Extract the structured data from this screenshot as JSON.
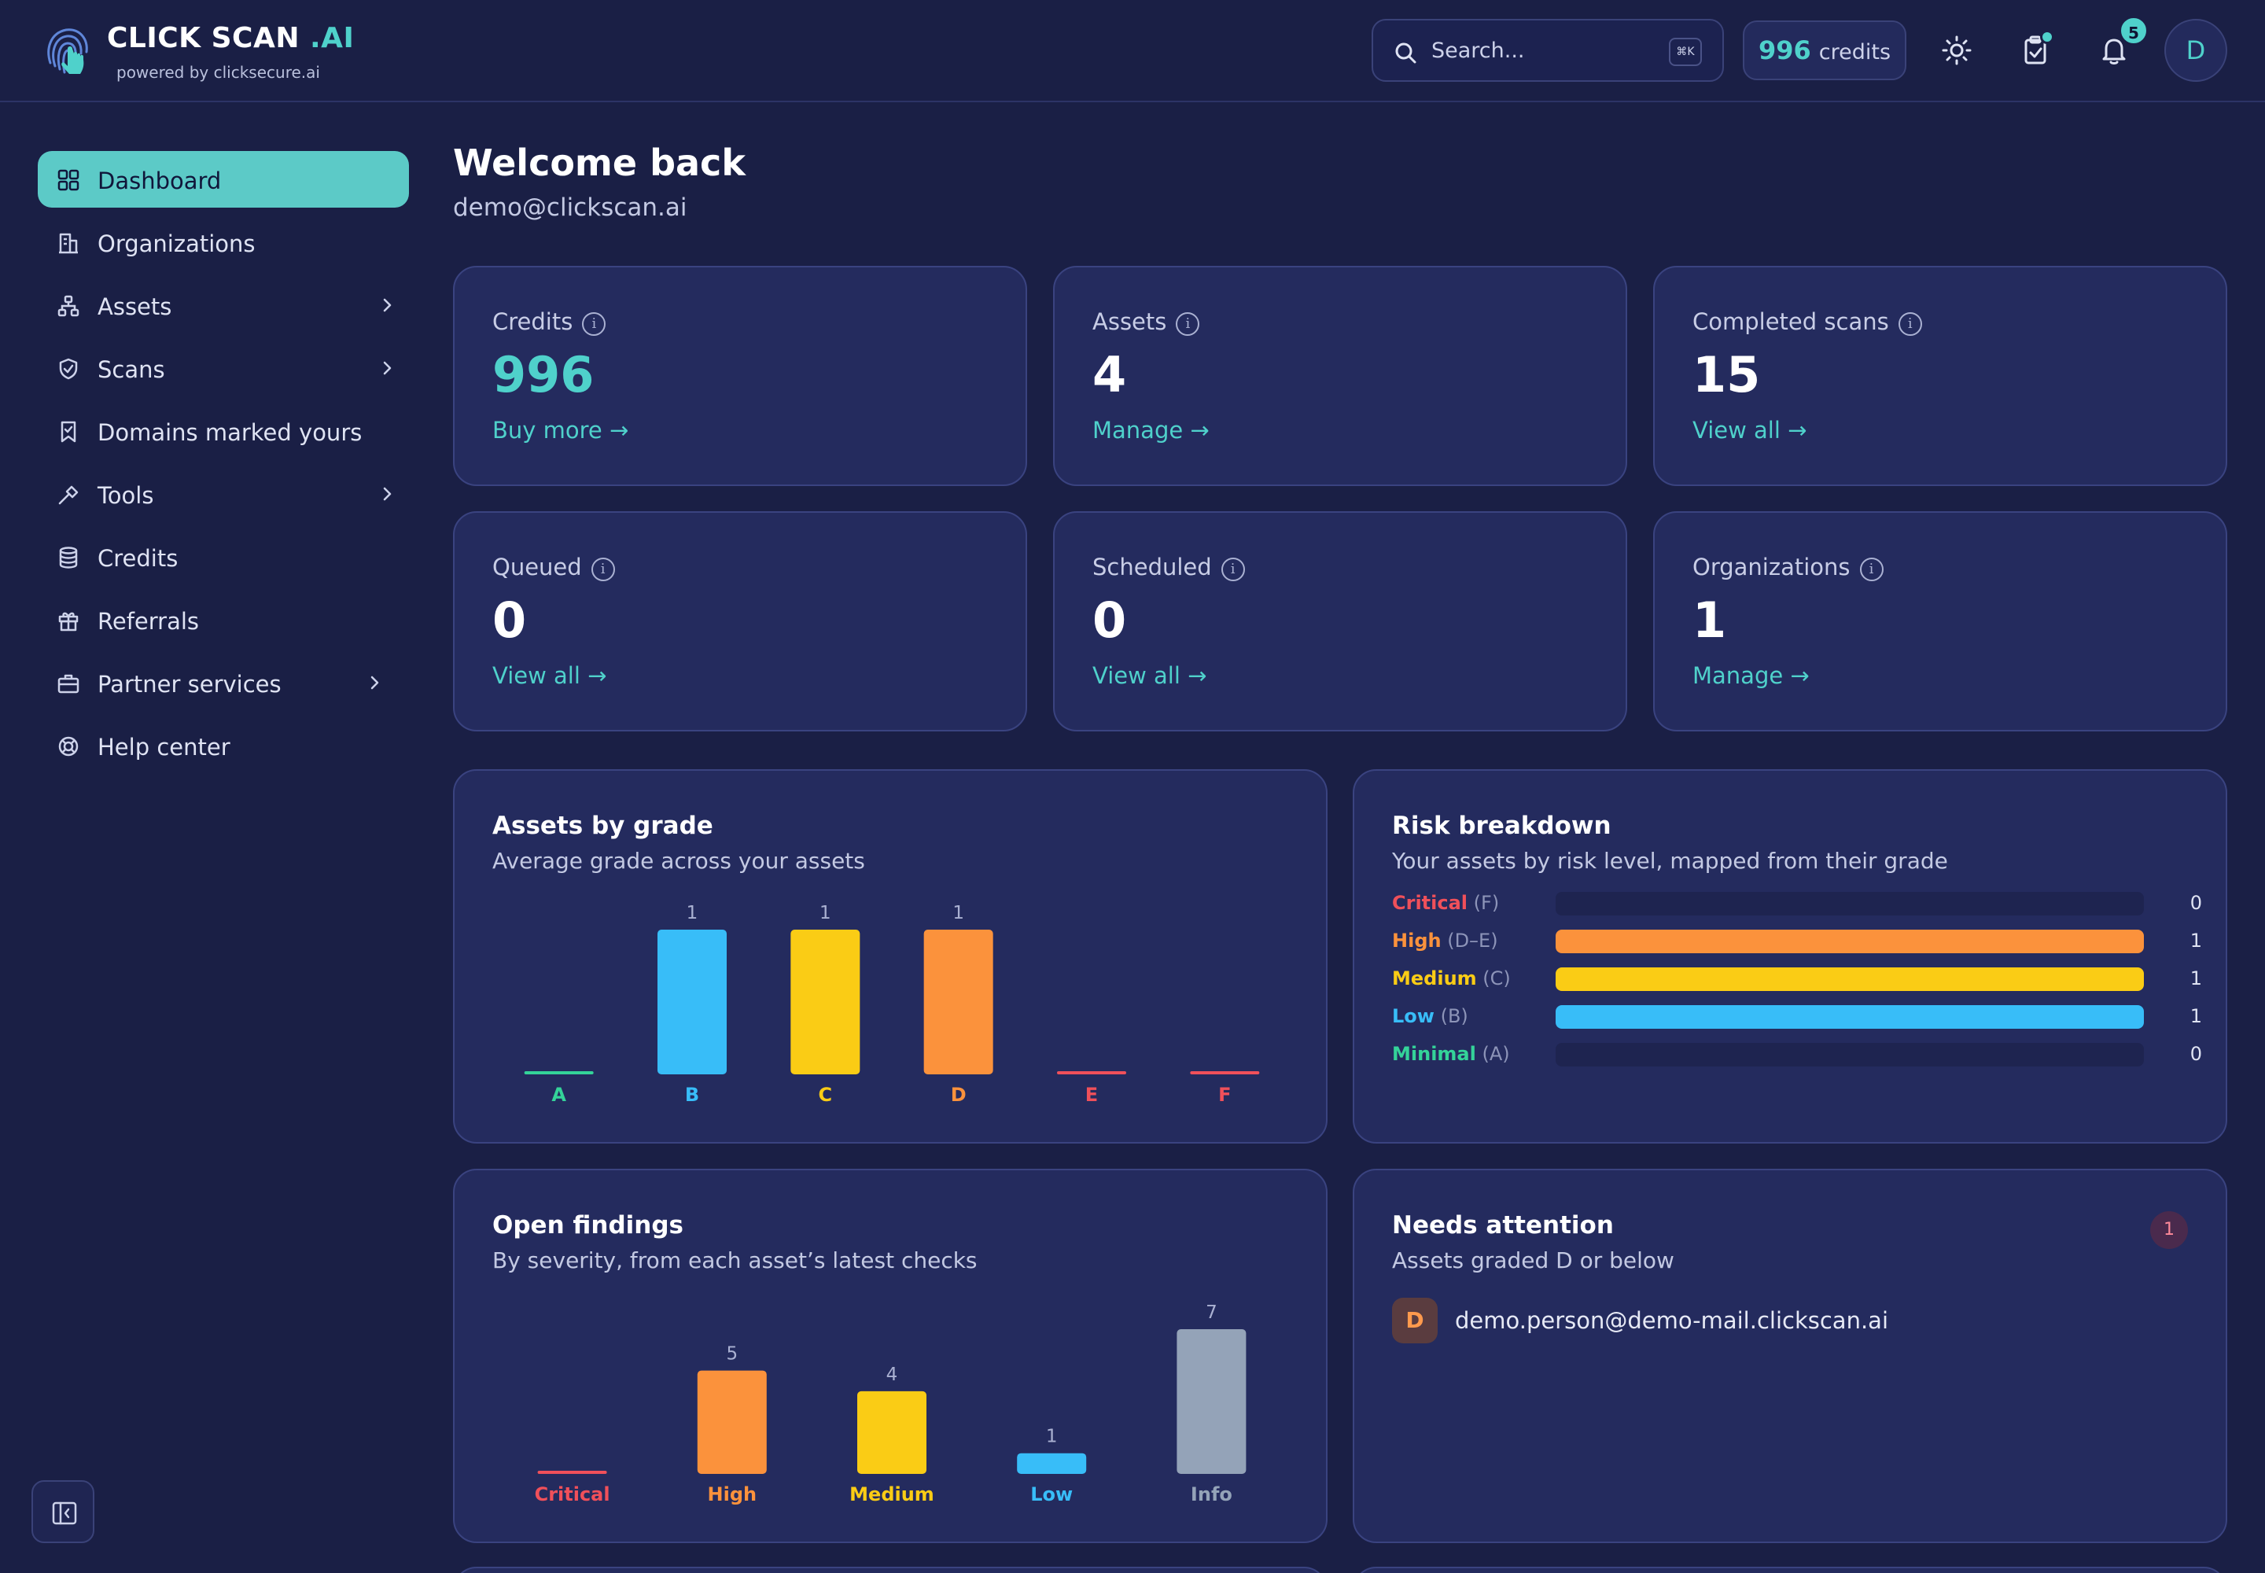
{
  "brand": {
    "name": "CLICK SCAN ",
    "suffix": ".AI",
    "tagline": "powered by clicksecure.ai"
  },
  "header": {
    "search_placeholder": "Search...",
    "search_shortcut": "⌘K",
    "credits_value": "996",
    "credits_label": "credits",
    "notifications_count": "5",
    "avatar_initial": "D"
  },
  "sidebar": {
    "items": [
      {
        "label": "Dashboard",
        "icon": "grid-icon",
        "active": true
      },
      {
        "label": "Organizations",
        "icon": "building-icon"
      },
      {
        "label": "Assets",
        "icon": "sitemap-icon",
        "has_children": true
      },
      {
        "label": "Scans",
        "icon": "shield-icon",
        "has_children": true
      },
      {
        "label": "Domains marked yours",
        "icon": "bookmark-icon"
      },
      {
        "label": "Tools",
        "icon": "hammer-icon",
        "has_children": true
      },
      {
        "label": "Credits",
        "icon": "database-icon"
      },
      {
        "label": "Referrals",
        "icon": "gift-icon"
      },
      {
        "label": "Partner services",
        "icon": "briefcase-icon",
        "has_children": true
      },
      {
        "label": "Help center",
        "icon": "lifebuoy-icon"
      }
    ]
  },
  "main": {
    "welcome": "Welcome back",
    "email": "demo@clickscan.ai",
    "stats": [
      {
        "label": "Credits",
        "value": "996",
        "link": "Buy more →"
      },
      {
        "label": "Assets",
        "value": "4",
        "link": "Manage →"
      },
      {
        "label": "Completed scans",
        "value": "15",
        "link": "View all →"
      },
      {
        "label": "Queued",
        "value": "0",
        "link": "View all →"
      },
      {
        "label": "Scheduled",
        "value": "0",
        "link": "View all →"
      },
      {
        "label": "Organizations",
        "value": "1",
        "link": "Manage →"
      }
    ],
    "grade_panel": {
      "title": "Assets by grade",
      "subtitle": "Average grade across your assets"
    },
    "risk_panel": {
      "title": "Risk breakdown",
      "subtitle": "Your assets by risk level, mapped from their grade",
      "rows": [
        {
          "level": "Critical",
          "grade": "(F)",
          "count": 0,
          "max": 1,
          "color": "#f0505a"
        },
        {
          "level": "High",
          "grade": "(D–E)",
          "count": 1,
          "max": 1,
          "color": "#fb923c"
        },
        {
          "level": "Medium",
          "grade": "(C)",
          "count": 1,
          "max": 1,
          "color": "#facc15"
        },
        {
          "level": "Low",
          "grade": "(B)",
          "count": 1,
          "max": 1,
          "color": "#38bdf8"
        },
        {
          "level": "Minimal",
          "grade": "(A)",
          "count": 0,
          "max": 1,
          "color": "#34d399"
        }
      ]
    },
    "findings_panel": {
      "title": "Open findings",
      "subtitle": "By severity, from each asset’s latest checks"
    },
    "attention_panel": {
      "title": "Needs attention",
      "subtitle": "Assets graded D or below",
      "count": "1",
      "items": [
        {
          "grade": "D",
          "name": "demo.person@demo-mail.clickscan.ai"
        }
      ]
    }
  },
  "chart_data": [
    {
      "type": "bar",
      "categories": [
        "A",
        "B",
        "C",
        "D",
        "E",
        "F"
      ],
      "values": [
        0,
        1,
        1,
        1,
        0,
        0
      ],
      "colors": [
        "#34d399",
        "#38bdf8",
        "#facc15",
        "#fb923c",
        "#f0505a",
        "#f0505a"
      ],
      "ylim": [
        0,
        1
      ]
    },
    {
      "type": "bar",
      "categories": [
        "Critical",
        "High",
        "Medium",
        "Low",
        "Info"
      ],
      "values": [
        0,
        5,
        4,
        1,
        7
      ],
      "colors": [
        "#f0505a",
        "#fb923c",
        "#facc15",
        "#38bdf8",
        "#94a3b8"
      ],
      "ylim": [
        0,
        7
      ]
    }
  ]
}
